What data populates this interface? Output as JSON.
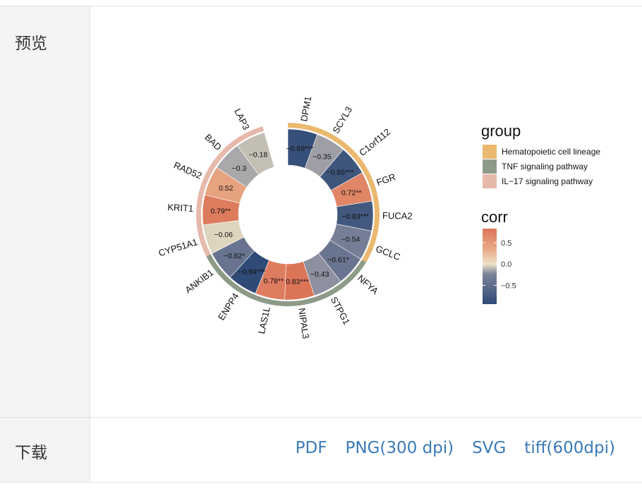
{
  "labels": {
    "preview": "预览",
    "download": "下载"
  },
  "download_links": [
    "PDF",
    "PNG(300 dpi)",
    "SVG",
    "tiff(600dpi)"
  ],
  "chart_data": {
    "type": "circular_heatmap",
    "segments": [
      {
        "gene": "DPM1",
        "corr": -0.89,
        "label": "−0.89***",
        "group": "Hematopoietic cell lineage"
      },
      {
        "gene": "SCYL3",
        "corr": -0.35,
        "label": "−0.35",
        "group": "Hematopoietic cell lineage"
      },
      {
        "gene": "C1orf112",
        "corr": -0.85,
        "label": "−0.85***",
        "group": "Hematopoietic cell lineage"
      },
      {
        "gene": "FGR",
        "corr": 0.72,
        "label": "0.72**",
        "group": "Hematopoietic cell lineage"
      },
      {
        "gene": "FUCA2",
        "corr": -0.83,
        "label": "−0.83***",
        "group": "Hematopoietic cell lineage"
      },
      {
        "gene": "GCLC",
        "corr": -0.54,
        "label": "−0.54",
        "group": "Hematopoietic cell lineage"
      },
      {
        "gene": "NFYA",
        "corr": -0.61,
        "label": "−0.61*",
        "group": "TNF signaling pathway"
      },
      {
        "gene": "STPG1",
        "corr": -0.43,
        "label": "−0.43",
        "group": "TNF signaling pathway"
      },
      {
        "gene": "NIPAL3",
        "corr": 0.83,
        "label": "0.83***",
        "group": "TNF signaling pathway"
      },
      {
        "gene": "LAS1L",
        "corr": 0.78,
        "label": "0.78**",
        "group": "TNF signaling pathway"
      },
      {
        "gene": "ENPP4",
        "corr": -0.94,
        "label": "−0.94***",
        "group": "TNF signaling pathway"
      },
      {
        "gene": "ANKIB1",
        "corr": -0.62,
        "label": "−0.62*",
        "group": "TNF signaling pathway"
      },
      {
        "gene": "CYP51A1",
        "corr": -0.06,
        "label": "−0.06",
        "group": "IL−17 signaling pathway"
      },
      {
        "gene": "KRIT1",
        "corr": 0.79,
        "label": "0.79**",
        "group": "IL−17 signaling pathway"
      },
      {
        "gene": "RAD52",
        "corr": 0.52,
        "label": "0.52",
        "group": "IL−17 signaling pathway"
      },
      {
        "gene": "BAD",
        "corr": -0.3,
        "label": "−0.3",
        "group": "IL−17 signaling pathway"
      },
      {
        "gene": "LAP3",
        "corr": -0.18,
        "label": "−0.18",
        "group": "IL−17 signaling pathway"
      }
    ],
    "groups": [
      {
        "name": "Hematopoietic cell lineage",
        "color": "#EAB96F"
      },
      {
        "name": "TNF signaling pathway",
        "color": "#8E9A88"
      },
      {
        "name": "IL−17 signaling pathway",
        "color": "#E6B9AC"
      }
    ],
    "legend_group_title": "group",
    "legend_corr_title": "corr",
    "corr_ticks": [
      {
        "value": 0.5,
        "label": "0.5"
      },
      {
        "value": 0.0,
        "label": "0.0"
      },
      {
        "value": -0.5,
        "label": "−0.5"
      }
    ],
    "corr_range": [
      -0.94,
      0.83
    ],
    "colors": {
      "low": "#2E4A75",
      "mid": "#EDE0C4",
      "high": "#DC7558"
    }
  }
}
